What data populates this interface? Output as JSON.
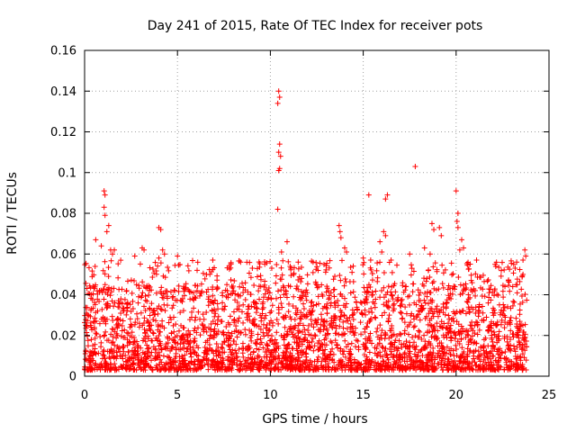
{
  "chart_data": {
    "type": "scatter",
    "title": "Day 241 of 2015, Rate Of TEC Index for receiver pots",
    "xlabel": "GPS time / hours",
    "ylabel": "ROTI / TECUs",
    "xlim": [
      0,
      25
    ],
    "ylim": [
      0,
      0.16
    ],
    "x_ticks": [
      0,
      5,
      10,
      15,
      20,
      25
    ],
    "y_ticks": [
      0,
      0.02,
      0.04,
      0.06,
      0.08,
      0.1,
      0.12,
      0.14,
      0.16
    ],
    "x_tick_labels": [
      "0",
      "5",
      "10",
      "15",
      "20",
      "25"
    ],
    "y_tick_labels": [
      "0",
      "0.02",
      "0.04",
      "0.06",
      "0.08",
      "0.1",
      "0.12",
      "0.14",
      "0.16"
    ],
    "grid": true,
    "marker": "plus",
    "series": [
      {
        "name": "ROTI",
        "color": "#ff0000",
        "x_range": [
          0.0,
          23.8
        ],
        "dense_band": [
          0.003,
          0.045
        ],
        "points": [
          [
            10.45,
            0.14
          ],
          [
            10.5,
            0.137
          ],
          [
            10.4,
            0.134
          ],
          [
            10.5,
            0.114
          ],
          [
            10.45,
            0.11
          ],
          [
            10.55,
            0.108
          ],
          [
            10.5,
            0.102
          ],
          [
            10.45,
            0.101
          ],
          [
            10.4,
            0.082
          ],
          [
            17.8,
            0.103
          ],
          [
            20.0,
            0.091
          ],
          [
            1.05,
            0.091
          ],
          [
            1.1,
            0.089
          ],
          [
            1.05,
            0.083
          ],
          [
            1.1,
            0.079
          ],
          [
            1.3,
            0.074
          ],
          [
            1.2,
            0.071
          ],
          [
            16.3,
            0.089
          ],
          [
            15.3,
            0.089
          ],
          [
            16.2,
            0.087
          ],
          [
            16.1,
            0.071
          ],
          [
            16.2,
            0.069
          ],
          [
            15.9,
            0.066
          ],
          [
            20.1,
            0.08
          ],
          [
            20.05,
            0.076
          ],
          [
            20.1,
            0.073
          ],
          [
            4.0,
            0.073
          ],
          [
            4.1,
            0.072
          ],
          [
            13.7,
            0.074
          ],
          [
            13.75,
            0.071
          ],
          [
            13.8,
            0.068
          ],
          [
            18.7,
            0.075
          ],
          [
            18.8,
            0.072
          ],
          [
            19.1,
            0.073
          ],
          [
            19.2,
            0.069
          ],
          [
            1.6,
            0.062
          ],
          [
            1.5,
            0.06
          ],
          [
            1.4,
            0.062
          ],
          [
            3.1,
            0.063
          ],
          [
            3.2,
            0.062
          ],
          [
            2.7,
            0.059
          ],
          [
            4.2,
            0.062
          ],
          [
            4.3,
            0.06
          ],
          [
            4.0,
            0.058
          ],
          [
            5.0,
            0.059
          ],
          [
            6.9,
            0.057
          ],
          [
            8.4,
            0.056
          ],
          [
            9.7,
            0.055
          ],
          [
            10.6,
            0.061
          ],
          [
            10.9,
            0.066
          ],
          [
            11.5,
            0.056
          ],
          [
            12.3,
            0.056
          ],
          [
            14.0,
            0.063
          ],
          [
            14.1,
            0.061
          ],
          [
            15.0,
            0.058
          ],
          [
            15.4,
            0.057
          ],
          [
            16.0,
            0.061
          ],
          [
            18.3,
            0.063
          ],
          [
            20.2,
            0.062
          ],
          [
            20.3,
            0.067
          ],
          [
            20.4,
            0.063
          ],
          [
            21.1,
            0.057
          ],
          [
            22.1,
            0.055
          ],
          [
            23.1,
            0.055
          ],
          [
            23.7,
            0.062
          ],
          [
            23.6,
            0.057
          ],
          [
            23.75,
            0.059
          ],
          [
            23.6,
            0.05
          ],
          [
            0.6,
            0.067
          ],
          [
            0.9,
            0.064
          ],
          [
            17.5,
            0.06
          ],
          [
            16.5,
            0.057
          ],
          [
            18.6,
            0.06
          ]
        ]
      }
    ]
  }
}
